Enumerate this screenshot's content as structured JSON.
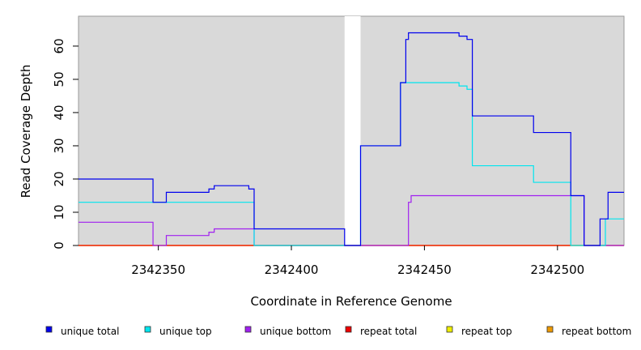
{
  "chart_data": {
    "type": "line",
    "xlabel": "Coordinate in Reference Genome",
    "ylabel": "Read Coverage Depth",
    "xlim": [
      2342320,
      2342525
    ],
    "ylim": [
      0,
      69
    ],
    "x_ticks": [
      2342350,
      2342400,
      2342450,
      2342500
    ],
    "y_ticks": [
      0,
      10,
      20,
      30,
      40,
      50,
      60
    ],
    "grid": false,
    "background": "#d9d9d9",
    "gaps": [
      [
        2342420,
        2342426
      ]
    ],
    "legend_position": "bottom",
    "series": [
      {
        "name": "unique total",
        "color": "#0000ee",
        "steps": [
          [
            2342320,
            20
          ],
          [
            2342348,
            13
          ],
          [
            2342353,
            16
          ],
          [
            2342369,
            17
          ],
          [
            2342371,
            18
          ],
          [
            2342384,
            17
          ],
          [
            2342386,
            5
          ],
          [
            2342420,
            0
          ],
          [
            2342426,
            30
          ],
          [
            2342441,
            49
          ],
          [
            2342443,
            62
          ],
          [
            2342444,
            64
          ],
          [
            2342463,
            63
          ],
          [
            2342466,
            62
          ],
          [
            2342468,
            39
          ],
          [
            2342491,
            34
          ],
          [
            2342505,
            15
          ],
          [
            2342510,
            0
          ],
          [
            2342516,
            8
          ],
          [
            2342519,
            16
          ],
          [
            2342525,
            16
          ]
        ]
      },
      {
        "name": "unique top",
        "color": "#00e5ee",
        "steps": [
          [
            2342320,
            13
          ],
          [
            2342386,
            0
          ],
          [
            2342420,
            0
          ],
          [
            2342426,
            30
          ],
          [
            2342441,
            49
          ],
          [
            2342463,
            48
          ],
          [
            2342466,
            47
          ],
          [
            2342468,
            24
          ],
          [
            2342491,
            19
          ],
          [
            2342505,
            0
          ],
          [
            2342518,
            8
          ],
          [
            2342525,
            8
          ]
        ]
      },
      {
        "name": "unique bottom",
        "color": "#a020f0",
        "steps": [
          [
            2342320,
            7
          ],
          [
            2342348,
            0
          ],
          [
            2342353,
            3
          ],
          [
            2342369,
            4
          ],
          [
            2342371,
            5
          ],
          [
            2342386,
            0
          ],
          [
            2342420,
            0
          ],
          [
            2342426,
            0
          ],
          [
            2342444,
            13
          ],
          [
            2342445,
            15
          ],
          [
            2342510,
            0
          ],
          [
            2342525,
            0
          ]
        ]
      },
      {
        "name": "repeat total",
        "color": "#ee0000",
        "steps": [
          [
            2342320,
            0
          ],
          [
            2342525,
            0
          ]
        ]
      },
      {
        "name": "repeat top",
        "color": "#eeee00",
        "steps": [
          [
            2342320,
            0
          ],
          [
            2342525,
            0
          ]
        ]
      },
      {
        "name": "repeat bottom",
        "color": "#ee9a00",
        "steps": [
          [
            2342320,
            0
          ],
          [
            2342525,
            0
          ]
        ]
      }
    ]
  }
}
